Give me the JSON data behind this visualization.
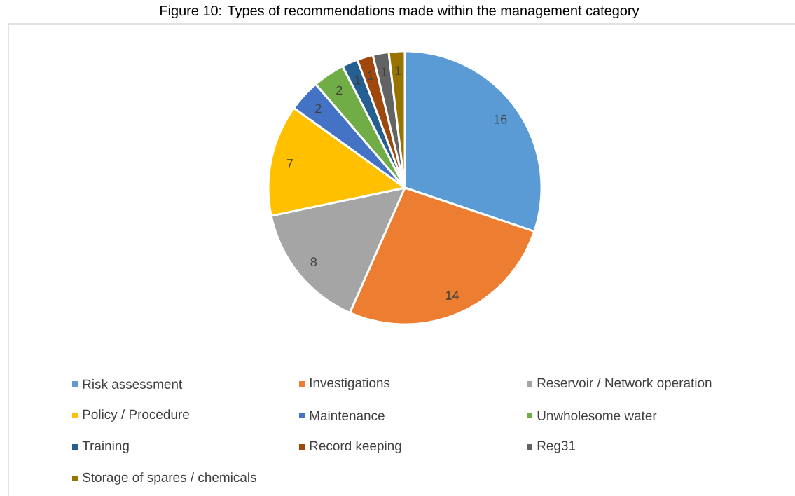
{
  "chart_data": {
    "type": "pie",
    "title": "Figure 10: Types of recommendations made within the management category",
    "categories": [
      "Risk assessment",
      "Investigations",
      "Reservoir / Network operation",
      "Policy / Procedure",
      "Maintenance",
      "Unwholesome water",
      "Training",
      "Record keeping",
      "Reg31",
      "Storage of spares / chemicals"
    ],
    "values": [
      16,
      14,
      8,
      7,
      2,
      2,
      1,
      1,
      1,
      1
    ],
    "colors": [
      "#5b9bd5",
      "#ed7d31",
      "#a5a5a5",
      "#ffc000",
      "#4472c4",
      "#70ad47",
      "#255e91",
      "#9e480e",
      "#636363",
      "#997300"
    ],
    "data_labels": true,
    "legend": "bottom"
  }
}
